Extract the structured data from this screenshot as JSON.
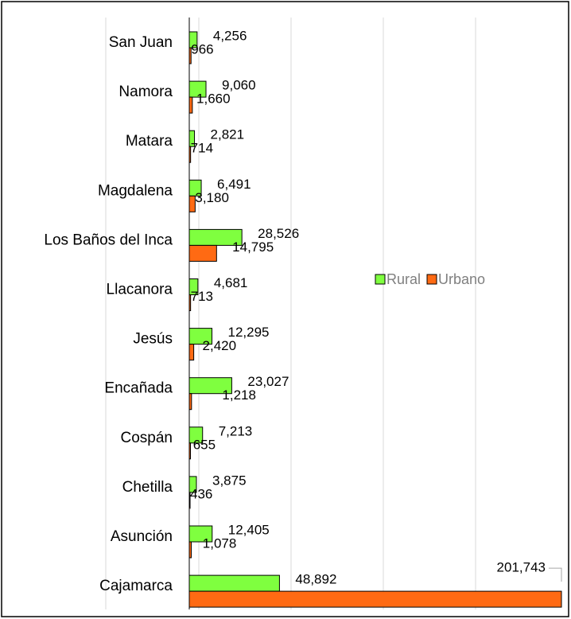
{
  "chart_data": {
    "type": "bar",
    "orientation": "horizontal",
    "categories": [
      "San Juan",
      "Namora",
      "Matara",
      "Magdalena",
      "Los Baños del Inca",
      "Llacanora",
      "Jesús",
      "Encañada",
      "Cospán",
      "Chetilla",
      "Asunción",
      "Cajamarca"
    ],
    "series": [
      {
        "name": "Rural",
        "color": "#7fff3f",
        "values": [
          4256,
          9060,
          2821,
          6491,
          28526,
          4681,
          12295,
          23027,
          7213,
          3875,
          12405,
          48892
        ],
        "value_labels": [
          "4,256",
          "9,060",
          "2,821",
          "6,491",
          "28,526",
          "4,681",
          "12,295",
          "23,027",
          "7,213",
          "3,875",
          "12,405",
          "48,892"
        ]
      },
      {
        "name": "Urbano",
        "color": "#ff6a13",
        "values": [
          966,
          1660,
          714,
          3180,
          14795,
          713,
          2420,
          1218,
          655,
          436,
          1078,
          201743
        ],
        "value_labels": [
          "966",
          "1,660",
          "714",
          "3,180",
          "14,795",
          "713",
          "2,420",
          "1,218",
          "655",
          "436",
          "1,078",
          "201,743"
        ]
      }
    ],
    "xlim": [
      0,
      201743
    ],
    "grid": true,
    "legend": "right"
  }
}
